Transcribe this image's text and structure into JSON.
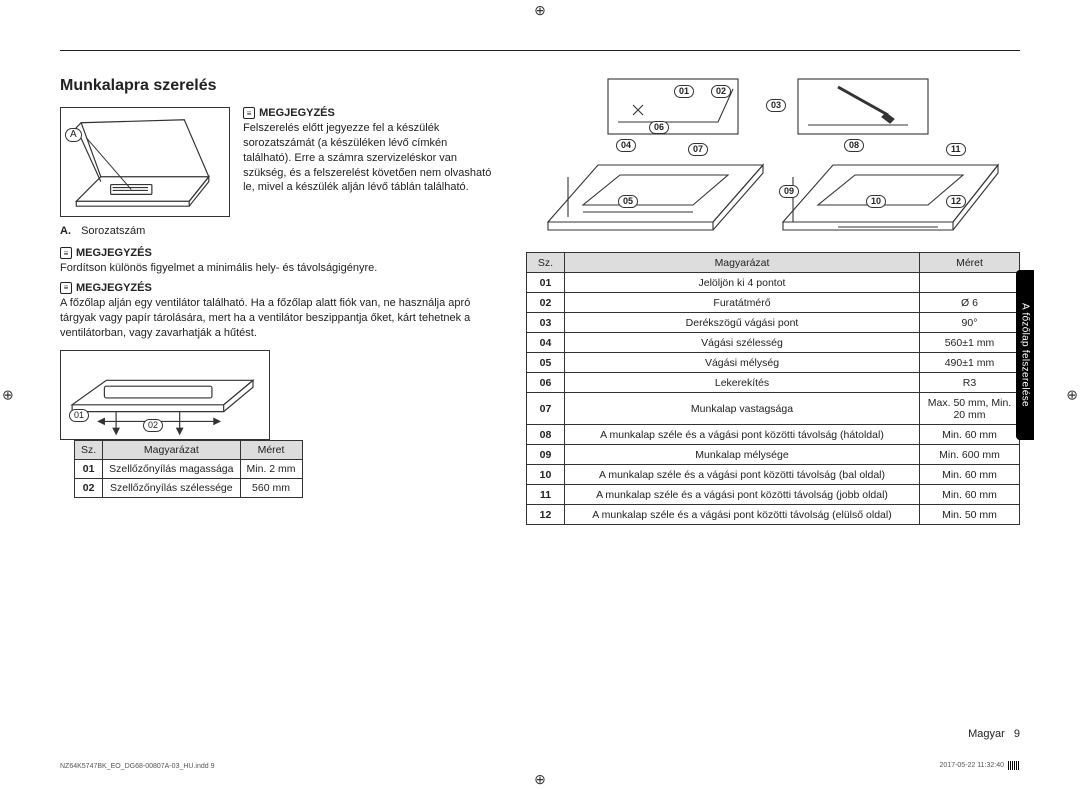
{
  "section_title": "Munkalapra szerelés",
  "sidetab": "A főzőlap felszerelése",
  "note_label": "MEGJEGYZÉS",
  "serial_note": "Felszerelés előtt jegyezze fel a készülék sorozatszámát (a készüléken lévő címkén található). Erre a számra szervizeléskor van szükség, és a felszerelést követően nem olvasható le, mivel a készülék alján lévő táblán található.",
  "serial_legend_a": "A.",
  "serial_legend_text": "Sorozatszám",
  "note2": "Fordítson különös figyelmet a minimális hely- és távolságigényre.",
  "note3": "A főzőlap alján egy ventilátor található. Ha a főzőlap alatt fiók van, ne használja apró tárgyak vagy papír tárolására, mert ha a ventilátor beszippantja őket, kárt tehetnek a ventilátorban, vagy zavarhatják a hűtést.",
  "small_table": {
    "headers": [
      "Sz.",
      "Magyarázat",
      "Méret"
    ],
    "rows": [
      [
        "01",
        "Szellőzőnyílás magassága",
        "Min. 2 mm"
      ],
      [
        "02",
        "Szellőzőnyílás szélessége",
        "560 mm"
      ]
    ]
  },
  "vent_callouts": {
    "c01": "01",
    "c02": "02"
  },
  "counter_callouts": {
    "c01": "01",
    "c02": "02",
    "c03": "03",
    "c04": "04",
    "c05": "05",
    "c06": "06",
    "c07": "07",
    "c08": "08",
    "c09": "09",
    "c10": "10",
    "c11": "11",
    "c12": "12"
  },
  "big_table": {
    "headers": [
      "Sz.",
      "Magyarázat",
      "Méret"
    ],
    "rows": [
      {
        "n": "01",
        "d": "Jelöljön ki 4 pontot",
        "m": ""
      },
      {
        "n": "02",
        "d": "Furatátmérő",
        "m": "Ø 6"
      },
      {
        "n": "03",
        "d": "Derékszögű vágási pont",
        "m": "90°"
      },
      {
        "n": "04",
        "d": "Vágási szélesség",
        "m": "560±1 mm"
      },
      {
        "n": "05",
        "d": "Vágási mélység",
        "m": "490±1 mm"
      },
      {
        "n": "06",
        "d": "Lekerekítés",
        "m": "R3"
      },
      {
        "n": "07",
        "d": "Munkalap vastagsága",
        "m": "Max. 50 mm, Min. 20 mm"
      },
      {
        "n": "08",
        "d": "A munkalap széle és a vágási pont közötti távolság (hátoldal)",
        "m": "Min. 60 mm"
      },
      {
        "n": "09",
        "d": "Munkalap mélysége",
        "m": "Min. 600 mm"
      },
      {
        "n": "10",
        "d": "A munkalap széle és a vágási pont közötti távolság (bal oldal)",
        "m": "Min. 60 mm"
      },
      {
        "n": "11",
        "d": "A munkalap széle és a vágási pont közötti távolság (jobb oldal)",
        "m": "Min. 60 mm"
      },
      {
        "n": "12",
        "d": "A munkalap széle és a vágási pont közötti távolság (elülső oldal)",
        "m": "Min. 50 mm"
      }
    ]
  },
  "footer_lang": "Magyar",
  "footer_page": "9",
  "footer_file": "NZ64K5747BK_EO_DG68-00807A-03_HU.indd   9",
  "footer_time": "2017-05-22   11:32:40",
  "serial_fig_label": "A",
  "colors": {
    "line": "#333333",
    "thead": "#dddddd",
    "text": "#222222"
  }
}
